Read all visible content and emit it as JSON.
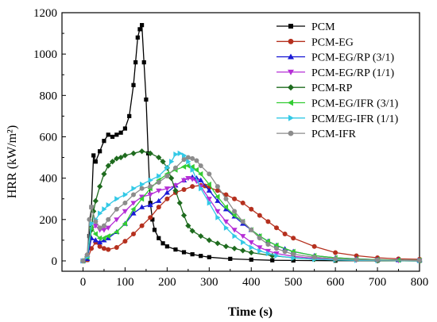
{
  "chart_data": {
    "type": "line",
    "xlabel": "Time (s)",
    "ylabel": "HRR (kW/m²)",
    "xlim": [
      -50,
      800
    ],
    "ylim": [
      -50,
      1200
    ],
    "xticks": [
      0,
      100,
      200,
      300,
      400,
      500,
      600,
      700,
      800
    ],
    "yticks": [
      0,
      200,
      400,
      600,
      800,
      1000,
      1200
    ],
    "legend_position": "top-right",
    "grid": false,
    "series": [
      {
        "name": "PCM",
        "color": "#000000",
        "marker": "square",
        "x": [
          0,
          10,
          15,
          20,
          25,
          30,
          40,
          50,
          60,
          70,
          80,
          90,
          100,
          110,
          120,
          125,
          130,
          135,
          140,
          145,
          150,
          155,
          160,
          165,
          170,
          180,
          190,
          200,
          220,
          240,
          260,
          280,
          300,
          350,
          400,
          450,
          500,
          600,
          700,
          800
        ],
        "y": [
          0,
          5,
          120,
          260,
          510,
          480,
          530,
          580,
          610,
          600,
          610,
          620,
          640,
          700,
          850,
          960,
          1080,
          1120,
          1140,
          960,
          780,
          520,
          280,
          200,
          150,
          110,
          85,
          70,
          55,
          42,
          32,
          24,
          18,
          10,
          6,
          3,
          2,
          1,
          1,
          0
        ]
      },
      {
        "name": "PCM-EG",
        "color": "#b5301e",
        "marker": "circle",
        "x": [
          0,
          10,
          20,
          30,
          40,
          50,
          60,
          80,
          100,
          120,
          140,
          160,
          180,
          200,
          220,
          240,
          260,
          280,
          290,
          300,
          320,
          340,
          360,
          380,
          400,
          420,
          440,
          460,
          480,
          500,
          550,
          600,
          650,
          700,
          750,
          800
        ],
        "y": [
          0,
          5,
          60,
          90,
          70,
          60,
          55,
          65,
          95,
          130,
          170,
          210,
          260,
          300,
          330,
          345,
          360,
          365,
          362,
          355,
          340,
          320,
          300,
          280,
          250,
          220,
          190,
          160,
          130,
          110,
          70,
          40,
          25,
          15,
          10,
          8
        ]
      },
      {
        "name": "PCM-EG/RP (3/1)",
        "color": "#1a1ad6",
        "marker": "triangle-up",
        "x": [
          0,
          10,
          20,
          30,
          40,
          50,
          60,
          80,
          100,
          120,
          140,
          160,
          180,
          200,
          220,
          240,
          260,
          270,
          280,
          300,
          320,
          340,
          360,
          380,
          400,
          420,
          440,
          460,
          480,
          500,
          550,
          600,
          650,
          700,
          750,
          800
        ],
        "y": [
          0,
          10,
          110,
          100,
          90,
          100,
          110,
          140,
          180,
          230,
          260,
          270,
          290,
          330,
          365,
          390,
          405,
          400,
          390,
          340,
          290,
          250,
          215,
          180,
          150,
          120,
          95,
          75,
          58,
          45,
          25,
          15,
          10,
          6,
          4,
          3
        ]
      },
      {
        "name": "PCM-EG/RP (1/1)",
        "color": "#b52ed6",
        "marker": "triangle-down",
        "x": [
          0,
          10,
          20,
          30,
          40,
          50,
          60,
          80,
          100,
          120,
          140,
          160,
          180,
          200,
          220,
          240,
          250,
          260,
          270,
          280,
          300,
          320,
          340,
          360,
          380,
          400,
          420,
          440,
          460,
          500,
          550,
          600,
          650,
          700,
          750,
          800
        ],
        "y": [
          0,
          20,
          150,
          170,
          150,
          150,
          160,
          200,
          240,
          280,
          310,
          320,
          340,
          350,
          365,
          390,
          400,
          395,
          385,
          360,
          300,
          240,
          190,
          150,
          120,
          90,
          65,
          48,
          36,
          22,
          12,
          7,
          4,
          3,
          2,
          1
        ]
      },
      {
        "name": "PCM-RP",
        "color": "#1e6b1e",
        "marker": "diamond",
        "x": [
          0,
          10,
          20,
          25,
          30,
          40,
          50,
          60,
          70,
          80,
          90,
          100,
          120,
          140,
          160,
          180,
          190,
          200,
          210,
          220,
          230,
          240,
          250,
          260,
          280,
          300,
          320,
          340,
          360,
          380,
          400,
          450,
          500,
          550,
          600,
          700,
          800
        ],
        "y": [
          0,
          20,
          150,
          240,
          290,
          360,
          420,
          460,
          480,
          495,
          500,
          510,
          520,
          530,
          520,
          500,
          480,
          450,
          400,
          340,
          280,
          220,
          170,
          145,
          120,
          100,
          85,
          70,
          60,
          50,
          40,
          25,
          15,
          8,
          4,
          1,
          0
        ]
      },
      {
        "name": "PCM-EG/IFR (3/1)",
        "color": "#33cc33",
        "marker": "triangle-left",
        "x": [
          0,
          10,
          20,
          30,
          40,
          50,
          60,
          80,
          100,
          120,
          140,
          160,
          180,
          200,
          220,
          240,
          250,
          260,
          270,
          280,
          300,
          320,
          340,
          360,
          380,
          400,
          420,
          440,
          460,
          500,
          550,
          600,
          650,
          700,
          750,
          800
        ],
        "y": [
          0,
          20,
          160,
          130,
          110,
          110,
          120,
          140,
          180,
          250,
          300,
          350,
          390,
          420,
          440,
          455,
          460,
          455,
          440,
          420,
          370,
          310,
          260,
          220,
          190,
          150,
          120,
          95,
          75,
          45,
          25,
          15,
          9,
          6,
          4,
          3
        ]
      },
      {
        "name": "PCM/EG-IFR (1/1)",
        "color": "#33c9e6",
        "marker": "triangle-right",
        "x": [
          0,
          10,
          20,
          30,
          40,
          50,
          60,
          80,
          100,
          120,
          140,
          160,
          180,
          200,
          210,
          220,
          230,
          240,
          250,
          260,
          280,
          300,
          320,
          340,
          360,
          380,
          400,
          420,
          440,
          460,
          500,
          550,
          600,
          650,
          700,
          800
        ],
        "y": [
          0,
          20,
          180,
          200,
          230,
          250,
          270,
          300,
          320,
          350,
          370,
          390,
          410,
          450,
          480,
          515,
          520,
          510,
          480,
          440,
          350,
          280,
          210,
          160,
          120,
          90,
          65,
          48,
          36,
          25,
          14,
          8,
          5,
          3,
          2,
          1
        ]
      },
      {
        "name": "PCM-IFR",
        "color": "#8c8c8c",
        "marker": "circle",
        "x": [
          0,
          10,
          15,
          20,
          30,
          40,
          50,
          60,
          80,
          100,
          120,
          140,
          160,
          180,
          200,
          220,
          240,
          250,
          260,
          270,
          280,
          300,
          320,
          340,
          360,
          380,
          400,
          420,
          440,
          460,
          480,
          500,
          550,
          600,
          650,
          700,
          800
        ],
        "y": [
          0,
          30,
          200,
          260,
          190,
          160,
          170,
          200,
          250,
          280,
          320,
          350,
          360,
          380,
          410,
          450,
          490,
          500,
          495,
          485,
          460,
          420,
          360,
          300,
          240,
          190,
          150,
          110,
          80,
          60,
          45,
          32,
          18,
          10,
          6,
          4,
          2
        ]
      }
    ]
  }
}
